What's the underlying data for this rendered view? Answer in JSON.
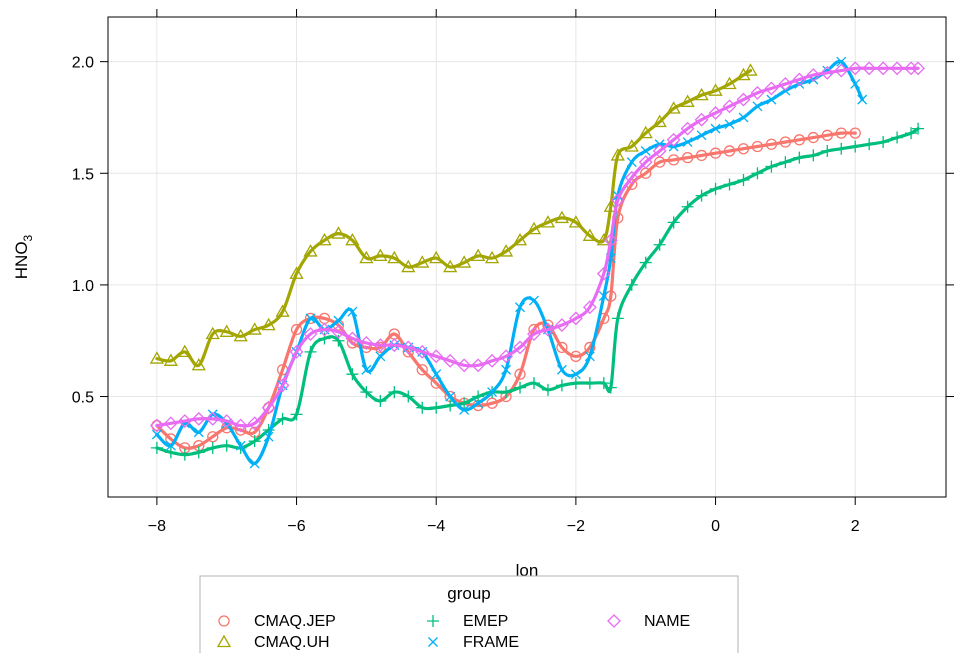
{
  "chart_data": {
    "type": "line",
    "title": "",
    "xlabel": "lon",
    "ylabel_base": "HNO",
    "ylabel_sub": "3",
    "xlim": [
      -8.7,
      3.3
    ],
    "ylim": [
      0.05,
      2.2
    ],
    "xticks": [
      -8,
      -6,
      -4,
      -2,
      0,
      2
    ],
    "xtick_labels": [
      "−8",
      "−6",
      "−4",
      "−2",
      "0",
      "2"
    ],
    "yticks": [
      0.5,
      1.0,
      1.5,
      2.0
    ],
    "ytick_labels": [
      "0.5",
      "1.0",
      "1.5",
      "2.0"
    ],
    "grid": true,
    "legend_title": "group",
    "legend_position": "bottom",
    "series": [
      {
        "name": "CMAQ.JEP",
        "color": "#F8766D",
        "marker": "circle",
        "x": [
          -8.0,
          -7.8,
          -7.6,
          -7.4,
          -7.2,
          -7.0,
          -6.8,
          -6.6,
          -6.4,
          -6.2,
          -6.0,
          -5.8,
          -5.6,
          -5.4,
          -5.2,
          -5.0,
          -4.8,
          -4.6,
          -4.4,
          -4.2,
          -4.0,
          -3.8,
          -3.6,
          -3.4,
          -3.2,
          -3.0,
          -2.8,
          -2.6,
          -2.4,
          -2.2,
          -2.0,
          -1.8,
          -1.6,
          -1.5,
          -1.4,
          -1.2,
          -1.0,
          -0.8,
          -0.6,
          -0.4,
          -0.2,
          0.0,
          0.2,
          0.4,
          0.6,
          0.8,
          1.0,
          1.2,
          1.4,
          1.6,
          1.8,
          2.0
        ],
        "y": [
          0.37,
          0.31,
          0.27,
          0.28,
          0.32,
          0.36,
          0.35,
          0.34,
          0.45,
          0.62,
          0.8,
          0.85,
          0.85,
          0.82,
          0.74,
          0.72,
          0.72,
          0.78,
          0.7,
          0.62,
          0.56,
          0.5,
          0.47,
          0.46,
          0.47,
          0.5,
          0.6,
          0.8,
          0.82,
          0.72,
          0.68,
          0.72,
          0.85,
          0.95,
          1.3,
          1.45,
          1.5,
          1.55,
          1.56,
          1.57,
          1.58,
          1.59,
          1.6,
          1.61,
          1.62,
          1.63,
          1.64,
          1.65,
          1.66,
          1.67,
          1.68,
          1.68
        ]
      },
      {
        "name": "CMAQ.UH",
        "color": "#A3A500",
        "marker": "triangle",
        "x": [
          -8.0,
          -7.8,
          -7.6,
          -7.4,
          -7.2,
          -7.0,
          -6.8,
          -6.6,
          -6.4,
          -6.2,
          -6.0,
          -5.8,
          -5.6,
          -5.4,
          -5.2,
          -5.0,
          -4.8,
          -4.6,
          -4.4,
          -4.2,
          -4.0,
          -3.8,
          -3.6,
          -3.4,
          -3.2,
          -3.0,
          -2.8,
          -2.6,
          -2.4,
          -2.2,
          -2.0,
          -1.8,
          -1.6,
          -1.5,
          -1.4,
          -1.2,
          -1.0,
          -0.8,
          -0.6,
          -0.4,
          -0.2,
          0.0,
          0.2,
          0.4,
          0.5
        ],
        "y": [
          0.67,
          0.66,
          0.7,
          0.64,
          0.78,
          0.79,
          0.77,
          0.8,
          0.82,
          0.88,
          1.05,
          1.15,
          1.2,
          1.23,
          1.2,
          1.12,
          1.13,
          1.12,
          1.08,
          1.1,
          1.12,
          1.08,
          1.1,
          1.13,
          1.12,
          1.15,
          1.2,
          1.25,
          1.28,
          1.3,
          1.28,
          1.22,
          1.2,
          1.35,
          1.58,
          1.62,
          1.68,
          1.73,
          1.79,
          1.82,
          1.85,
          1.87,
          1.9,
          1.94,
          1.96
        ]
      },
      {
        "name": "EMEP",
        "color": "#00BF7D",
        "marker": "plus",
        "x": [
          -8.0,
          -7.8,
          -7.6,
          -7.4,
          -7.2,
          -7.0,
          -6.8,
          -6.6,
          -6.4,
          -6.2,
          -6.0,
          -5.8,
          -5.6,
          -5.4,
          -5.2,
          -5.0,
          -4.8,
          -4.6,
          -4.4,
          -4.2,
          -4.0,
          -3.8,
          -3.6,
          -3.4,
          -3.2,
          -3.0,
          -2.8,
          -2.6,
          -2.4,
          -2.2,
          -2.0,
          -1.8,
          -1.6,
          -1.5,
          -1.4,
          -1.2,
          -1.0,
          -0.8,
          -0.6,
          -0.4,
          -0.2,
          0.0,
          0.2,
          0.4,
          0.6,
          0.8,
          1.0,
          1.2,
          1.4,
          1.6,
          1.8,
          2.0,
          2.2,
          2.4,
          2.6,
          2.8,
          2.9
        ],
        "y": [
          0.27,
          0.25,
          0.24,
          0.25,
          0.27,
          0.28,
          0.27,
          0.3,
          0.35,
          0.4,
          0.42,
          0.7,
          0.76,
          0.75,
          0.6,
          0.52,
          0.48,
          0.52,
          0.5,
          0.45,
          0.45,
          0.46,
          0.47,
          0.5,
          0.52,
          0.52,
          0.54,
          0.56,
          0.53,
          0.55,
          0.56,
          0.56,
          0.56,
          0.54,
          0.85,
          1.0,
          1.1,
          1.18,
          1.28,
          1.35,
          1.4,
          1.43,
          1.45,
          1.47,
          1.5,
          1.53,
          1.55,
          1.57,
          1.58,
          1.6,
          1.61,
          1.62,
          1.63,
          1.64,
          1.66,
          1.68,
          1.7
        ]
      },
      {
        "name": "FRAME",
        "color": "#00B0F6",
        "marker": "cross",
        "x": [
          -8.0,
          -7.8,
          -7.6,
          -7.4,
          -7.2,
          -7.0,
          -6.8,
          -6.6,
          -6.4,
          -6.2,
          -6.0,
          -5.8,
          -5.6,
          -5.4,
          -5.2,
          -5.0,
          -4.8,
          -4.6,
          -4.4,
          -4.2,
          -4.0,
          -3.8,
          -3.6,
          -3.4,
          -3.2,
          -3.0,
          -2.8,
          -2.6,
          -2.4,
          -2.2,
          -2.0,
          -1.8,
          -1.6,
          -1.5,
          -1.4,
          -1.2,
          -1.0,
          -0.8,
          -0.6,
          -0.4,
          -0.2,
          0.0,
          0.2,
          0.4,
          0.6,
          0.8,
          1.0,
          1.2,
          1.4,
          1.6,
          1.8,
          2.0,
          2.1
        ],
        "y": [
          0.33,
          0.28,
          0.38,
          0.34,
          0.42,
          0.38,
          0.28,
          0.2,
          0.32,
          0.55,
          0.7,
          0.85,
          0.8,
          0.84,
          0.88,
          0.62,
          0.68,
          0.73,
          0.72,
          0.7,
          0.6,
          0.5,
          0.44,
          0.47,
          0.52,
          0.62,
          0.9,
          0.93,
          0.8,
          0.62,
          0.6,
          0.68,
          0.95,
          1.12,
          1.4,
          1.55,
          1.6,
          1.63,
          1.62,
          1.64,
          1.67,
          1.7,
          1.72,
          1.75,
          1.8,
          1.83,
          1.87,
          1.9,
          1.92,
          1.96,
          2.0,
          1.9,
          1.83
        ]
      },
      {
        "name": "NAME",
        "color": "#E76BF3",
        "marker": "diamond",
        "x": [
          -8.0,
          -7.8,
          -7.6,
          -7.4,
          -7.2,
          -7.0,
          -6.8,
          -6.6,
          -6.4,
          -6.2,
          -6.0,
          -5.8,
          -5.6,
          -5.4,
          -5.2,
          -5.0,
          -4.8,
          -4.6,
          -4.4,
          -4.2,
          -4.0,
          -3.8,
          -3.6,
          -3.4,
          -3.2,
          -3.0,
          -2.8,
          -2.6,
          -2.4,
          -2.2,
          -2.0,
          -1.8,
          -1.6,
          -1.5,
          -1.4,
          -1.2,
          -1.0,
          -0.8,
          -0.6,
          -0.4,
          -0.2,
          0.0,
          0.2,
          0.4,
          0.6,
          0.8,
          1.0,
          1.2,
          1.4,
          1.6,
          1.8,
          2.0,
          2.2,
          2.4,
          2.6,
          2.8,
          2.9
        ],
        "y": [
          0.37,
          0.38,
          0.39,
          0.4,
          0.4,
          0.39,
          0.37,
          0.38,
          0.45,
          0.55,
          0.7,
          0.78,
          0.8,
          0.79,
          0.76,
          0.74,
          0.73,
          0.73,
          0.72,
          0.7,
          0.68,
          0.66,
          0.64,
          0.64,
          0.66,
          0.68,
          0.72,
          0.78,
          0.8,
          0.82,
          0.85,
          0.9,
          1.05,
          1.2,
          1.38,
          1.48,
          1.55,
          1.6,
          1.65,
          1.7,
          1.74,
          1.77,
          1.8,
          1.83,
          1.86,
          1.88,
          1.9,
          1.92,
          1.94,
          1.95,
          1.96,
          1.97,
          1.97,
          1.97,
          1.97,
          1.97,
          1.97
        ]
      }
    ]
  }
}
